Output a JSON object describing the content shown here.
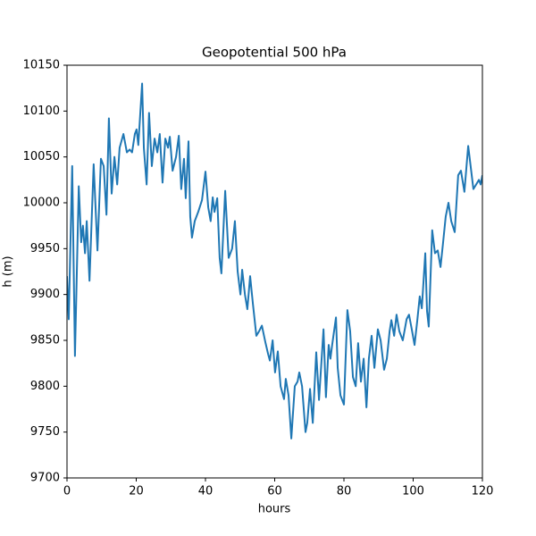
{
  "chart_data": {
    "type": "line",
    "title": "Geopotential 500 hPa",
    "xlabel": "hours",
    "ylabel": "h (m)",
    "color": "#1f77b4",
    "xlim": [
      0,
      120
    ],
    "xticks": [
      0,
      20,
      40,
      60,
      80,
      100,
      120
    ],
    "ylim": [
      9700,
      10150
    ],
    "yticks": [
      9700,
      9750,
      9800,
      9850,
      9900,
      9950,
      10000,
      10050,
      10100,
      10150
    ],
    "x": [
      0,
      0.5,
      1.5,
      2.3,
      3.4,
      4.1,
      4.6,
      5.2,
      5.7,
      6.5,
      7.7,
      8.8,
      9.8,
      10.6,
      11.4,
      12.1,
      12.9,
      13.7,
      14.5,
      15.2,
      16.3,
      17.3,
      18.1,
      18.8,
      19.6,
      20.1,
      20.6,
      21.7,
      22.2,
      23.0,
      23.7,
      24.5,
      25.3,
      26.1,
      26.8,
      27.6,
      28.4,
      29.2,
      29.7,
      30.5,
      31.5,
      32.3,
      33.0,
      33.8,
      34.3,
      35.1,
      35.6,
      36.1,
      36.9,
      37.9,
      39.0,
      40.0,
      40.8,
      41.5,
      42.1,
      42.6,
      43.4,
      44.1,
      44.6,
      45.7,
      46.7,
      47.7,
      48.5,
      49.3,
      50.1,
      50.6,
      51.4,
      52.1,
      52.9,
      53.7,
      54.7,
      55.5,
      56.3,
      57.3,
      58.1,
      58.6,
      59.4,
      60.1,
      60.9,
      61.7,
      62.7,
      63.2,
      64.0,
      64.8,
      65.8,
      66.6,
      67.1,
      67.9,
      68.9,
      69.4,
      70.2,
      71.0,
      72.0,
      72.8,
      74.1,
      74.8,
      75.6,
      76.1,
      76.6,
      77.7,
      78.2,
      79.0,
      80.0,
      81.0,
      81.8,
      82.6,
      83.4,
      84.1,
      84.9,
      85.7,
      86.5,
      87.2,
      88.0,
      88.8,
      89.8,
      90.6,
      91.6,
      92.4,
      93.2,
      93.7,
      94.5,
      95.2,
      96.0,
      97.0,
      98.1,
      98.8,
      99.6,
      100.4,
      101.2,
      101.9,
      102.5,
      103.0,
      103.5,
      104.0,
      104.5,
      105.5,
      106.3,
      107.1,
      107.9,
      108.6,
      109.4,
      110.2,
      111.0,
      112.0,
      113.0,
      113.8,
      114.8,
      115.9,
      116.6,
      117.4,
      118.2,
      119.0,
      119.5,
      120
    ],
    "values": [
      9920,
      9873,
      10040,
      9833,
      10018,
      9957,
      9975,
      9945,
      9980,
      9915,
      10042,
      9948,
      10048,
      10040,
      9987,
      10092,
      10010,
      10050,
      10020,
      10060,
      10075,
      10055,
      10058,
      10055,
      10075,
      10080,
      10063,
      10130,
      10060,
      10020,
      10098,
      10040,
      10070,
      10055,
      10075,
      10022,
      10070,
      10060,
      10072,
      10035,
      10050,
      10073,
      10015,
      10048,
      10005,
      10067,
      9985,
      9962,
      9980,
      9990,
      10003,
      10034,
      9995,
      9980,
      10006,
      9990,
      10005,
      9940,
      9923,
      10013,
      9940,
      9950,
      9980,
      9925,
      9900,
      9927,
      9900,
      9884,
      9920,
      9890,
      9855,
      9860,
      9866,
      9848,
      9835,
      9828,
      9850,
      9815,
      9838,
      9800,
      9786,
      9808,
      9790,
      9743,
      9800,
      9805,
      9815,
      9800,
      9750,
      9760,
      9797,
      9760,
      9837,
      9785,
      9862,
      9788,
      9845,
      9830,
      9845,
      9875,
      9820,
      9790,
      9780,
      9883,
      9860,
      9810,
      9800,
      9847,
      9805,
      9830,
      9777,
      9830,
      9855,
      9820,
      9862,
      9850,
      9818,
      9830,
      9860,
      9872,
      9855,
      9878,
      9860,
      9850,
      9873,
      9878,
      9862,
      9845,
      9872,
      9898,
      9885,
      9915,
      9945,
      9882,
      9865,
      9970,
      9945,
      9948,
      9930,
      9955,
      9985,
      10000,
      9980,
      9968,
      10030,
      10035,
      10012,
      10062,
      10040,
      10015,
      10020,
      10025,
      10020,
      10030
    ]
  }
}
